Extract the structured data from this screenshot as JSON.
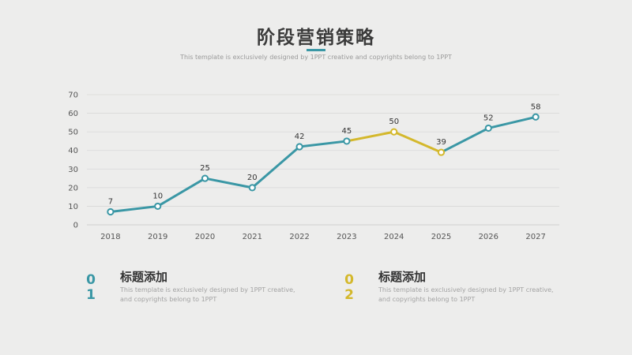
{
  "header": {
    "title": "阶段营销策略",
    "subtitle": "This template is exclusively designed by 1PPT creative and copyrights belong to 1PPT"
  },
  "colors": {
    "teal": "#3a97a5",
    "yellow": "#d4b82c",
    "text": "#3a3a3a",
    "grid": "#d8d8d8"
  },
  "chart_data": {
    "type": "line",
    "title": "",
    "xlabel": "",
    "ylabel": "",
    "categories": [
      "2018",
      "2019",
      "2020",
      "2021",
      "2022",
      "2023",
      "2024",
      "2025",
      "2026",
      "2027"
    ],
    "values": [
      7,
      10,
      25,
      20,
      42,
      45,
      50,
      39,
      52,
      58
    ],
    "data_labels": [
      "7",
      "10",
      "25",
      "20",
      "42",
      "45",
      "50",
      "39",
      "52",
      "58"
    ],
    "highlight_range": [
      "2023",
      "2025"
    ],
    "ylim": [
      0,
      70
    ],
    "yticks": [
      "0",
      "10",
      "20",
      "30",
      "40",
      "50",
      "60",
      "70"
    ],
    "grid": true,
    "legend": "none"
  },
  "blocks": [
    {
      "number_top": "0",
      "number_bottom": "1",
      "heading": "标题添加",
      "line1": "This template is exclusively designed by 1PPT creative,",
      "line2": "and copyrights belong to 1PPT"
    },
    {
      "number_top": "0",
      "number_bottom": "2",
      "heading": "标题添加",
      "line1": "This template is exclusively designed by 1PPT creative,",
      "line2": "and copyrights belong to 1PPT"
    }
  ]
}
